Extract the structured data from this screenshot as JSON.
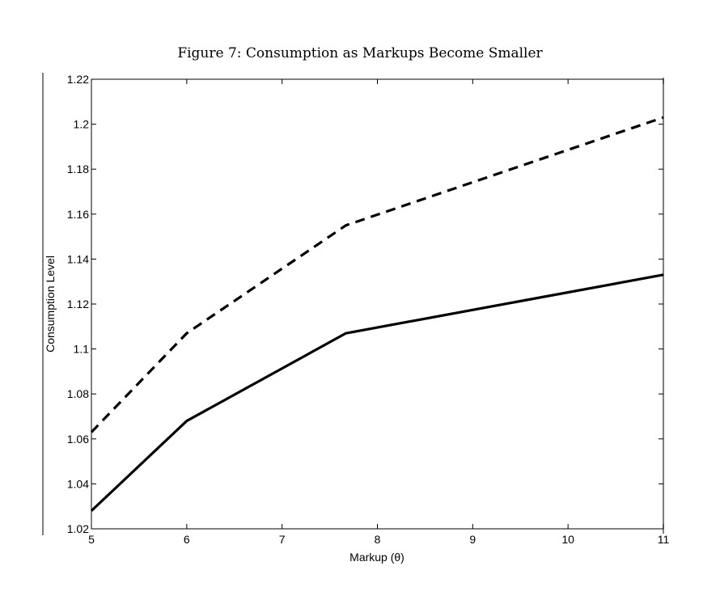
{
  "title": "Figure 7: Consumption as Markups Become Smaller",
  "chart_data": {
    "type": "line",
    "title": "Figure 7: Consumption as Markups Become Smaller",
    "xlabel": "Markup (θ)",
    "ylabel": "Consumption Level",
    "xlim": [
      5,
      11
    ],
    "ylim": [
      1.02,
      1.22
    ],
    "xticks": [
      "5",
      "6",
      "7",
      "8",
      "9",
      "10",
      "11"
    ],
    "yticks": [
      "1.02",
      "1.04",
      "1.06",
      "1.08",
      "1.1",
      "1.12",
      "1.14",
      "1.16",
      "1.18",
      "1.2",
      "1.22"
    ],
    "grid": false,
    "series": [
      {
        "style": "solid",
        "color": "#000000",
        "x": [
          5,
          6,
          7.67,
          11
        ],
        "y": [
          1.028,
          1.068,
          1.107,
          1.133
        ]
      },
      {
        "style": "dashed",
        "color": "#000000",
        "x": [
          5,
          6,
          7.67,
          11
        ],
        "y": [
          1.063,
          1.107,
          1.155,
          1.203
        ]
      }
    ]
  }
}
